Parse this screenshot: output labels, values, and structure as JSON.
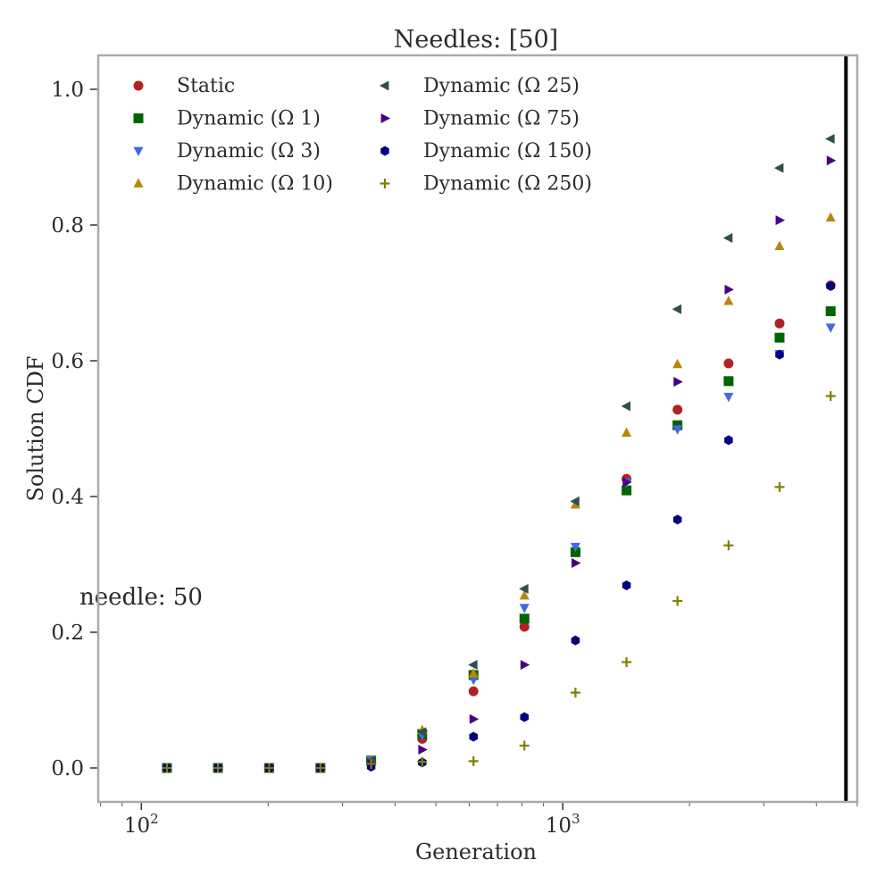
{
  "chart_data": {
    "type": "scatter",
    "title": "Needles: [50]",
    "xlabel": "Generation",
    "ylabel": "Solution CDF",
    "xscale": "log",
    "xlim": [
      79,
      5000
    ],
    "ylim": [
      -0.05,
      1.05
    ],
    "x_ticks": [
      {
        "value": 100,
        "label": "10^2"
      },
      {
        "value": 1000,
        "label": "10^3"
      }
    ],
    "y_ticks": [
      {
        "value": 0.0,
        "label": "0.0"
      },
      {
        "value": 0.2,
        "label": "0.2"
      },
      {
        "value": 0.4,
        "label": "0.4"
      },
      {
        "value": 0.6,
        "label": "0.6"
      },
      {
        "value": 0.8,
        "label": "0.8"
      },
      {
        "value": 1.0,
        "label": "1.0"
      }
    ],
    "grid": false,
    "legend_position": "top-left",
    "annotation": "needle: 50",
    "vertical_line_x": 4700,
    "x": [
      115,
      152,
      201,
      266,
      351,
      464,
      614,
      811,
      1072,
      1417,
      1872,
      2475,
      3270,
      4323
    ],
    "series": [
      {
        "name": "Static",
        "color": "#b22222",
        "marker": "circle",
        "values": [
          0,
          0,
          0,
          0,
          0.01,
          0.043,
          0.113,
          0.208,
          0.318,
          0.426,
          0.528,
          0.596,
          0.655,
          0.711
        ]
      },
      {
        "name": "Dynamic (Ω 1)",
        "color": "#006400",
        "marker": "square",
        "values": [
          0,
          0,
          0,
          0,
          0.011,
          0.05,
          0.137,
          0.22,
          0.318,
          0.409,
          0.505,
          0.57,
          0.634,
          0.673
        ]
      },
      {
        "name": "Dynamic (Ω 3)",
        "color": "#4169e1",
        "marker": "triangle-down",
        "values": [
          0,
          0,
          0,
          0,
          0.012,
          0.048,
          0.13,
          0.236,
          0.326,
          0.421,
          0.499,
          0.547,
          0.61,
          0.649
        ]
      },
      {
        "name": "Dynamic (Ω 10)",
        "color": "#b8860b",
        "marker": "triangle-up",
        "values": [
          0,
          0,
          0,
          0,
          0.011,
          0.056,
          0.139,
          0.254,
          0.388,
          0.494,
          0.595,
          0.688,
          0.769,
          0.811
        ]
      },
      {
        "name": "Dynamic (Ω 25)",
        "color": "#2f4f4f",
        "marker": "triangle-left",
        "values": [
          0,
          0,
          0,
          0,
          0.011,
          0.053,
          0.152,
          0.264,
          0.393,
          0.533,
          0.676,
          0.781,
          0.884,
          0.927
        ]
      },
      {
        "name": "Dynamic (Ω 75)",
        "color": "#4b0082",
        "marker": "triangle-right",
        "values": [
          0,
          0,
          0,
          0,
          0.006,
          0.027,
          0.072,
          0.152,
          0.302,
          0.421,
          0.569,
          0.705,
          0.807,
          0.895
        ]
      },
      {
        "name": "Dynamic (Ω 150)",
        "color": "#000080",
        "marker": "hexagon",
        "values": [
          0,
          0,
          0,
          0,
          0.002,
          0.008,
          0.046,
          0.075,
          0.188,
          0.269,
          0.366,
          0.483,
          0.609,
          0.71
        ]
      },
      {
        "name": "Dynamic (Ω 250)",
        "color": "#808000",
        "marker": "plus",
        "values": [
          0,
          0,
          0,
          0,
          0.006,
          0.009,
          0.01,
          0.033,
          0.111,
          0.156,
          0.246,
          0.328,
          0.414,
          0.548
        ]
      }
    ]
  }
}
